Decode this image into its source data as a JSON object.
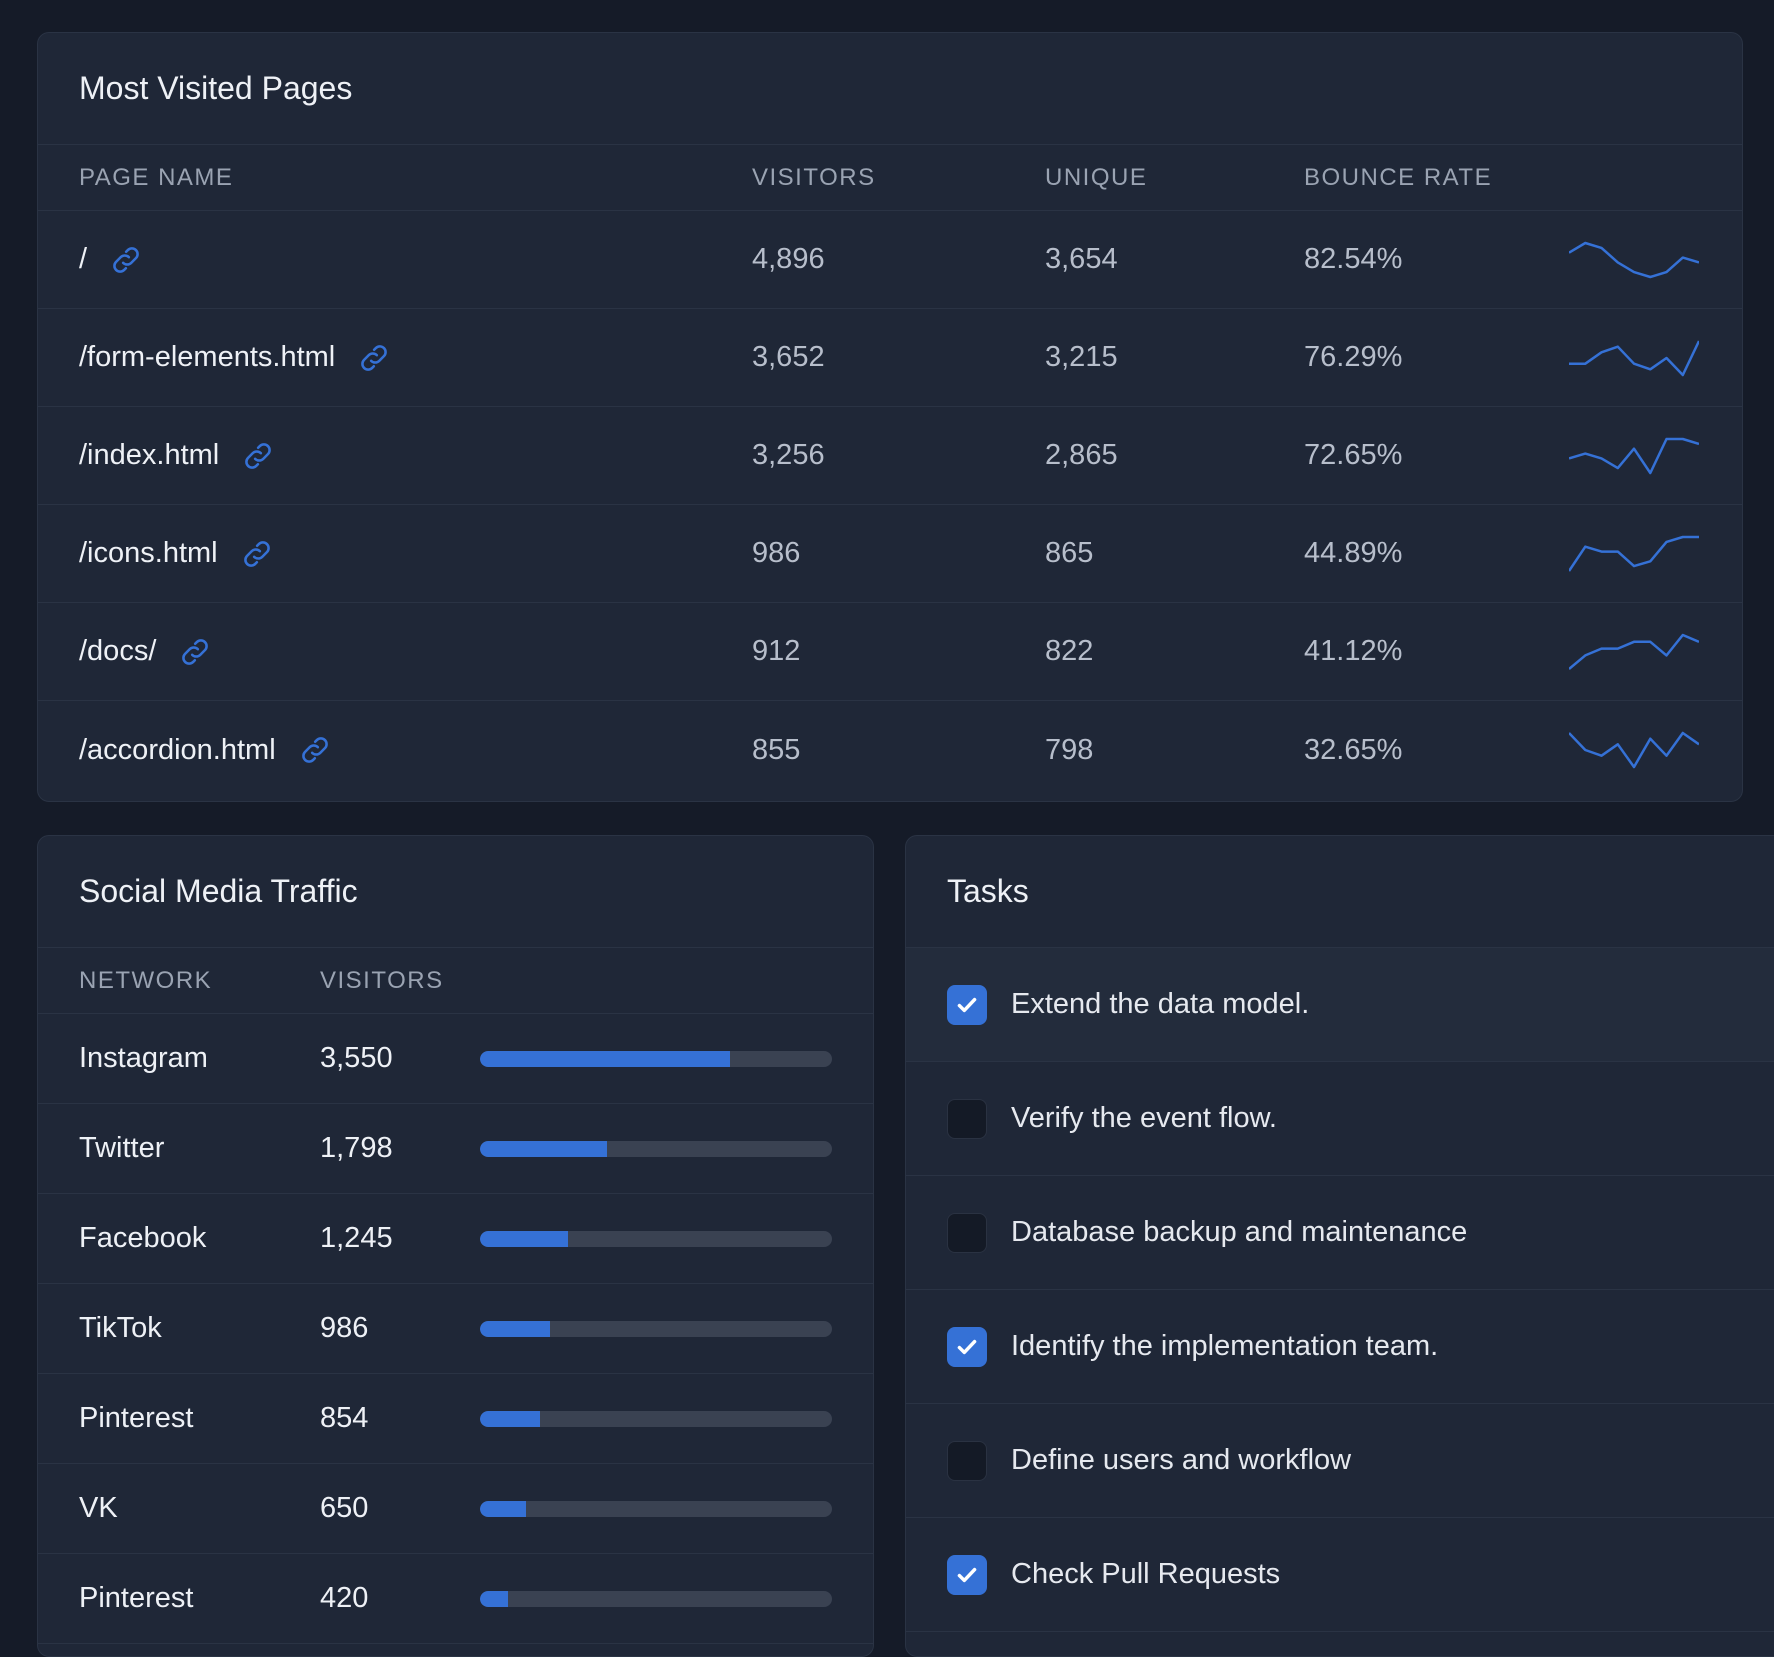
{
  "colors": {
    "accent": "#3571d6",
    "background": "#151b28",
    "card": "#1f2737"
  },
  "pages": {
    "title": "Most Visited Pages",
    "columns": [
      "PAGE NAME",
      "VISITORS",
      "UNIQUE",
      "BOUNCE RATE"
    ],
    "rows": [
      {
        "name": "/",
        "visitors": "4,896",
        "unique": "3,654",
        "bounce": "82.54%",
        "trend": [
          6,
          8,
          7,
          4,
          2,
          1,
          2,
          5,
          4
        ]
      },
      {
        "name": "/form-elements.html",
        "visitors": "3,652",
        "unique": "3,215",
        "bounce": "76.29%",
        "trend": [
          4,
          4,
          6,
          7,
          4,
          3,
          5,
          2,
          8
        ]
      },
      {
        "name": "/index.html",
        "visitors": "3,256",
        "unique": "2,865",
        "bounce": "72.65%",
        "trend": [
          4,
          5,
          4,
          2,
          6,
          1,
          8,
          8,
          7
        ]
      },
      {
        "name": "/icons.html",
        "visitors": "986",
        "unique": "865",
        "bounce": "44.89%",
        "trend": [
          1,
          6,
          5,
          5,
          2,
          3,
          7,
          8,
          8
        ]
      },
      {
        "name": "/docs/",
        "visitors": "912",
        "unique": "822",
        "bounce": "41.12%",
        "trend": [
          1,
          3,
          4,
          4,
          5,
          5,
          3,
          6,
          5
        ]
      },
      {
        "name": "/accordion.html",
        "visitors": "855",
        "unique": "798",
        "bounce": "32.65%",
        "trend": [
          7,
          4,
          3,
          5,
          1,
          6,
          3,
          7,
          5
        ]
      }
    ]
  },
  "social": {
    "title": "Social Media Traffic",
    "columns": [
      "NETWORK",
      "VISITORS"
    ],
    "rows": [
      {
        "network": "Instagram",
        "visitors": "3,550",
        "share": 0.71
      },
      {
        "network": "Twitter",
        "visitors": "1,798",
        "share": 0.36
      },
      {
        "network": "Facebook",
        "visitors": "1,245",
        "share": 0.25
      },
      {
        "network": "TikTok",
        "visitors": "986",
        "share": 0.2
      },
      {
        "network": "Pinterest",
        "visitors": "854",
        "share": 0.17
      },
      {
        "network": "VK",
        "visitors": "650",
        "share": 0.13
      },
      {
        "network": "Pinterest",
        "visitors": "420",
        "share": 0.08
      }
    ]
  },
  "tasks": {
    "title": "Tasks",
    "items": [
      {
        "label": "Extend the data model.",
        "checked": true
      },
      {
        "label": "Verify the event flow.",
        "checked": false
      },
      {
        "label": "Database backup and maintenance",
        "checked": false
      },
      {
        "label": "Identify the implementation team.",
        "checked": true
      },
      {
        "label": "Define users and workflow",
        "checked": false
      },
      {
        "label": "Check Pull Requests",
        "checked": true
      }
    ]
  }
}
